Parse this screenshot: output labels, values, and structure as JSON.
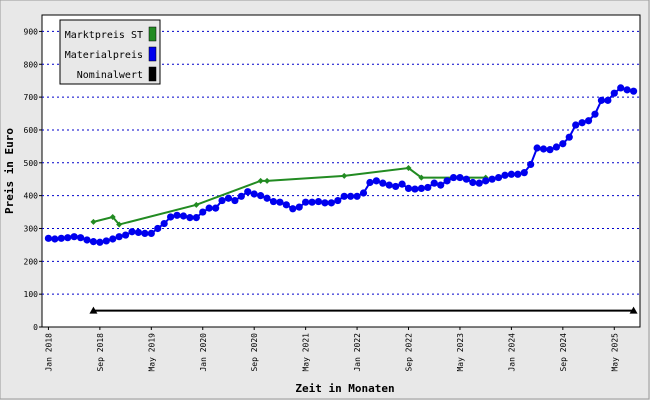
{
  "chart_data": {
    "type": "line",
    "xlabel": "Zeit in Monaten",
    "ylabel": "Preis in Euro",
    "xlim": [
      "2017-12",
      "2025-09"
    ],
    "ylim": [
      0,
      950
    ],
    "yticks": [
      0,
      100,
      200,
      300,
      400,
      500,
      600,
      700,
      800,
      900
    ],
    "xticks": [
      {
        "value": "2018-01",
        "label": "Jan 2018"
      },
      {
        "value": "2018-09",
        "label": "Sep 2018"
      },
      {
        "value": "2019-05",
        "label": "May 2019"
      },
      {
        "value": "2020-01",
        "label": "Jan 2020"
      },
      {
        "value": "2020-09",
        "label": "Sep 2020"
      },
      {
        "value": "2021-05",
        "label": "May 2021"
      },
      {
        "value": "2022-01",
        "label": "Jan 2022"
      },
      {
        "value": "2022-09",
        "label": "Sep 2022"
      },
      {
        "value": "2023-05",
        "label": "May 2023"
      },
      {
        "value": "2024-01",
        "label": "Jan 2024"
      },
      {
        "value": "2024-09",
        "label": "Sep 2024"
      },
      {
        "value": "2025-05",
        "label": "May 2025"
      }
    ],
    "grid": true,
    "legend": "upper left",
    "series": [
      {
        "name": "Marktpreis ST",
        "color": "#228b22",
        "marker": "diamond",
        "x": [
          "2018-08",
          "2018-11",
          "2018-12",
          "2019-12",
          "2020-10",
          "2020-11",
          "2021-11",
          "2022-09",
          "2022-11",
          "2023-09"
        ],
        "values": [
          320,
          335,
          312,
          372,
          445,
          445,
          460,
          484,
          455,
          455
        ]
      },
      {
        "name": "Materialpreis",
        "color": "#0000ee",
        "marker": "circle",
        "x": [
          "2018-01",
          "2018-02",
          "2018-03",
          "2018-04",
          "2018-05",
          "2018-06",
          "2018-07",
          "2018-08",
          "2018-09",
          "2018-10",
          "2018-11",
          "2018-12",
          "2019-01",
          "2019-02",
          "2019-03",
          "2019-04",
          "2019-05",
          "2019-06",
          "2019-07",
          "2019-08",
          "2019-09",
          "2019-10",
          "2019-11",
          "2019-12",
          "2020-01",
          "2020-02",
          "2020-03",
          "2020-04",
          "2020-05",
          "2020-06",
          "2020-07",
          "2020-08",
          "2020-09",
          "2020-10",
          "2020-11",
          "2020-12",
          "2021-01",
          "2021-02",
          "2021-03",
          "2021-04",
          "2021-05",
          "2021-06",
          "2021-07",
          "2021-08",
          "2021-09",
          "2021-10",
          "2021-11",
          "2021-12",
          "2022-01",
          "2022-02",
          "2022-03",
          "2022-04",
          "2022-05",
          "2022-06",
          "2022-07",
          "2022-08",
          "2022-09",
          "2022-10",
          "2022-11",
          "2022-12",
          "2023-01",
          "2023-02",
          "2023-03",
          "2023-04",
          "2023-05",
          "2023-06",
          "2023-07",
          "2023-08",
          "2023-09",
          "2023-10",
          "2023-11",
          "2023-12",
          "2024-01",
          "2024-02",
          "2024-03",
          "2024-04",
          "2024-05",
          "2024-06",
          "2024-07",
          "2024-08",
          "2024-09",
          "2024-10",
          "2024-11",
          "2024-12",
          "2025-01",
          "2025-02",
          "2025-03",
          "2025-04",
          "2025-05",
          "2025-06",
          "2025-07",
          "2025-08"
        ],
        "values": [
          270,
          268,
          270,
          272,
          275,
          272,
          265,
          260,
          258,
          262,
          268,
          275,
          280,
          290,
          288,
          285,
          285,
          300,
          315,
          335,
          340,
          338,
          333,
          333,
          350,
          362,
          362,
          385,
          392,
          385,
          398,
          412,
          405,
          400,
          392,
          382,
          380,
          372,
          360,
          365,
          380,
          380,
          382,
          378,
          378,
          385,
          398,
          398,
          398,
          408,
          440,
          445,
          438,
          432,
          428,
          435,
          422,
          420,
          422,
          425,
          438,
          432,
          445,
          455,
          455,
          450,
          440,
          438,
          445,
          450,
          455,
          462,
          465,
          465,
          470,
          495,
          545,
          542,
          540,
          548,
          558,
          578,
          615,
          622,
          628,
          648,
          690,
          690,
          712,
          728,
          722,
          718
        ]
      },
      {
        "name": "Nominalwert",
        "color": "#000000",
        "marker": "triangle",
        "x": [
          "2018-08",
          "2025-08"
        ],
        "values": [
          50,
          50
        ]
      }
    ]
  }
}
